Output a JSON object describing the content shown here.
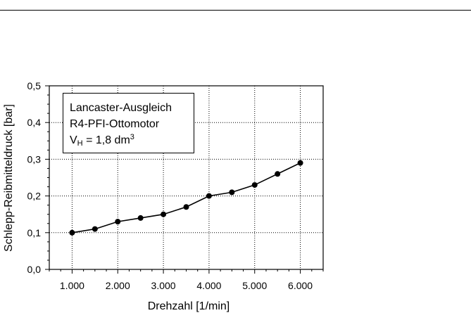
{
  "chart_data": {
    "type": "line",
    "xlabel": "Drehzahl [1/min]",
    "ylabel": "Schlepp-Reibmitteldruck [bar]",
    "xlim": [
      500,
      6500
    ],
    "ylim": [
      0,
      0.5
    ],
    "x_ticks": [
      1000,
      2000,
      3000,
      4000,
      5000,
      6000
    ],
    "x_tick_labels": [
      "1.000",
      "2.000",
      "3.000",
      "4.000",
      "5.000",
      "6.000"
    ],
    "y_ticks": [
      0,
      0.1,
      0.2,
      0.3,
      0.4,
      0.5
    ],
    "y_tick_labels": [
      "0,0",
      "0,1",
      "0,2",
      "0,3",
      "0,4",
      "0,5"
    ],
    "grid": true,
    "annotation": {
      "line1": "Lancaster-Ausgleich",
      "line2": "R4-PFI-Ottomotor",
      "line3_prefix": "V",
      "line3_sub": "H",
      "line3_mid": " = 1,8 dm",
      "line3_sup": "3"
    },
    "series": [
      {
        "x": [
          1000,
          1500,
          2000,
          2500,
          3000,
          3500,
          4000,
          4500,
          5000,
          5500,
          6000
        ],
        "y": [
          0.1,
          0.11,
          0.13,
          0.14,
          0.15,
          0.17,
          0.2,
          0.21,
          0.23,
          0.26,
          0.29
        ],
        "color": "#000000",
        "marker": "circle"
      }
    ]
  }
}
